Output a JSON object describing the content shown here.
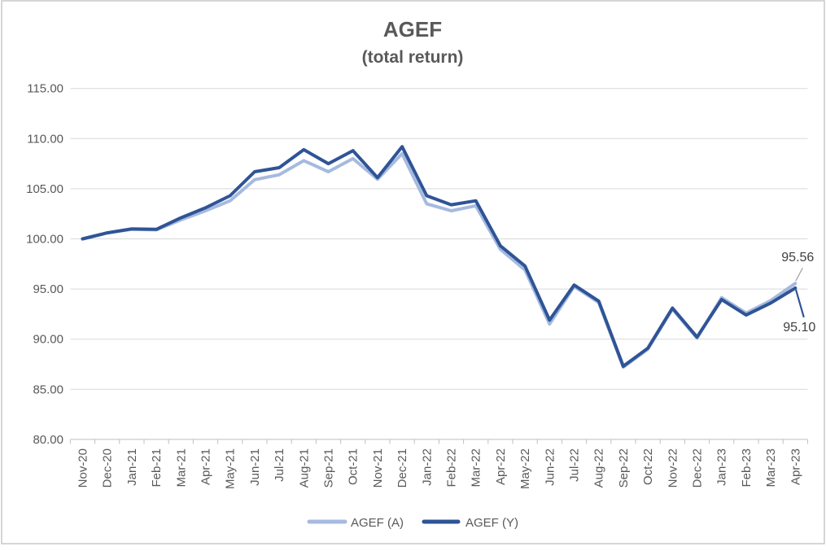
{
  "chart_data": {
    "type": "line",
    "title": "AGEF",
    "subtitle": "(total return)",
    "categories": [
      "Nov-20",
      "Dec-20",
      "Jan-21",
      "Feb-21",
      "Mar-21",
      "Apr-21",
      "May-21",
      "Jun-21",
      "Jul-21",
      "Aug-21",
      "Sep-21",
      "Oct-21",
      "Nov-21",
      "Dec-21",
      "Jan-22",
      "Feb-22",
      "Mar-22",
      "Apr-22",
      "May-22",
      "Jun-22",
      "Jul-22",
      "Aug-22",
      "Sep-22",
      "Oct-22",
      "Nov-22",
      "Dec-22",
      "Jan-23",
      "Feb-23",
      "Mar-23",
      "Apr-23"
    ],
    "series": [
      {
        "name": "AGEF (A)",
        "color": "#A6BADF",
        "values": [
          100.0,
          100.6,
          100.95,
          100.9,
          101.9,
          102.8,
          103.8,
          105.9,
          106.4,
          107.8,
          106.7,
          108.0,
          105.95,
          108.5,
          103.5,
          102.8,
          103.3,
          98.95,
          96.9,
          91.5,
          95.25,
          93.65,
          87.2,
          89.0,
          93.0,
          90.1,
          94.15,
          92.6,
          93.85,
          95.56
        ]
      },
      {
        "name": "AGEF (Y)",
        "color": "#2F5496",
        "values": [
          100.0,
          100.6,
          101.0,
          100.95,
          102.1,
          103.1,
          104.3,
          106.7,
          107.1,
          108.9,
          107.5,
          108.8,
          106.1,
          109.2,
          104.3,
          103.4,
          103.8,
          99.3,
          97.3,
          91.9,
          95.4,
          93.8,
          87.3,
          89.1,
          93.1,
          90.2,
          93.95,
          92.4,
          93.6,
          95.1
        ]
      }
    ],
    "end_labels": [
      "95.56",
      "95.10"
    ],
    "y_axis": {
      "min": 80,
      "max": 115,
      "step": 5,
      "tick_labels": [
        "115.00",
        "110.00",
        "105.00",
        "100.00",
        "95.00",
        "90.00",
        "85.00",
        "80.00"
      ]
    },
    "x_axis": {
      "label_rotation": -90
    },
    "legend_position": "bottom",
    "grid": true
  },
  "colors": {
    "gridline": "#D9D9D9",
    "axis": "#BFBFBF",
    "axis_text": "#595959",
    "title_text": "#595959",
    "data_label_text": "#404040",
    "leader_line": "#A6A6A6",
    "chart_border": "#C9C9C9"
  }
}
